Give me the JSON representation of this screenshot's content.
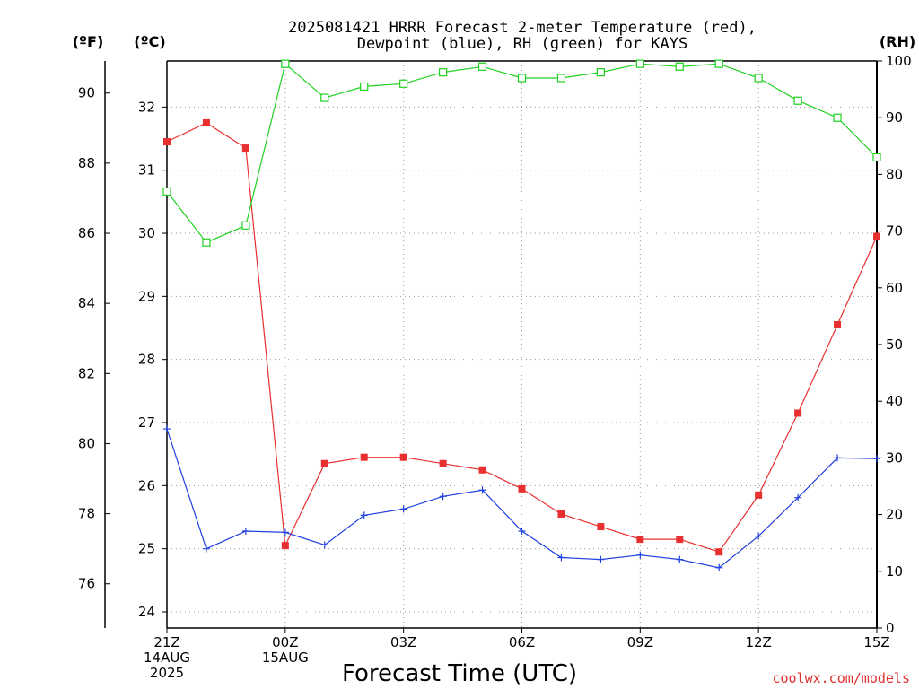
{
  "chart_data": {
    "type": "line",
    "title_line1": "2025081421 HRRR Forecast 2-meter Temperature (red),",
    "title_line2": "Dewpoint (blue), RH (green) for KAYS",
    "units": {
      "fahrenheit": "(ºF)",
      "celsius": "(ºC)",
      "rh": "(RH)"
    },
    "xlabel": "Forecast Time (UTC)",
    "credit": "coolwx.com/models",
    "x_hours": [
      0,
      1,
      2,
      3,
      4,
      5,
      6,
      7,
      8,
      9,
      10,
      11,
      12,
      13,
      14,
      15,
      16,
      17,
      18
    ],
    "x_ticks": [
      {
        "hour": 0,
        "lines": [
          "21Z",
          "14AUG",
          "2025"
        ]
      },
      {
        "hour": 3,
        "lines": [
          "00Z",
          "15AUG"
        ]
      },
      {
        "hour": 6,
        "lines": [
          "03Z"
        ]
      },
      {
        "hour": 9,
        "lines": [
          "06Z"
        ]
      },
      {
        "hour": 12,
        "lines": [
          "09Z"
        ]
      },
      {
        "hour": 15,
        "lines": [
          "12Z"
        ]
      },
      {
        "hour": 18,
        "lines": [
          "15Z"
        ]
      }
    ],
    "celsius_ticks": [
      "24",
      "25",
      "26",
      "27",
      "28",
      "29",
      "30",
      "31",
      "32"
    ],
    "fahrenheit_ticks": [
      "76",
      "78",
      "80",
      "82",
      "84",
      "86",
      "88",
      "90"
    ],
    "rh_ticks": [
      "0",
      "10",
      "20",
      "30",
      "40",
      "50",
      "60",
      "70",
      "80",
      "90",
      "100"
    ],
    "ylim_celsius": [
      23.6,
      32.8
    ],
    "ylim_rh": [
      0,
      100
    ],
    "grid": true,
    "series": [
      {
        "name": "Temperature",
        "axis": "celsius",
        "color": "#e83030",
        "marker": "filled-square",
        "values": [
          31.45,
          31.75,
          31.35,
          25.05,
          26.35,
          26.45,
          26.45,
          26.35,
          26.25,
          25.95,
          25.55,
          25.35,
          25.15,
          25.15,
          24.95,
          25.85,
          27.15,
          28.55,
          29.95
        ]
      },
      {
        "name": "Dewpoint",
        "axis": "celsius",
        "color": "#2040e0",
        "marker": "plus",
        "values": [
          26.9,
          25.0,
          25.28,
          25.26,
          25.06,
          25.53,
          25.63,
          25.83,
          25.93,
          25.28,
          24.86,
          24.83,
          24.9,
          24.83,
          24.7,
          25.2,
          25.81,
          26.44,
          26.43
        ]
      },
      {
        "name": "RH",
        "axis": "rh",
        "color": "#20d020",
        "marker": "open-square",
        "values": [
          77,
          68,
          71,
          99.5,
          93.5,
          95.5,
          96,
          98,
          99,
          97,
          97,
          98,
          99.5,
          99,
          99.5,
          97,
          93,
          90,
          83
        ]
      }
    ]
  }
}
